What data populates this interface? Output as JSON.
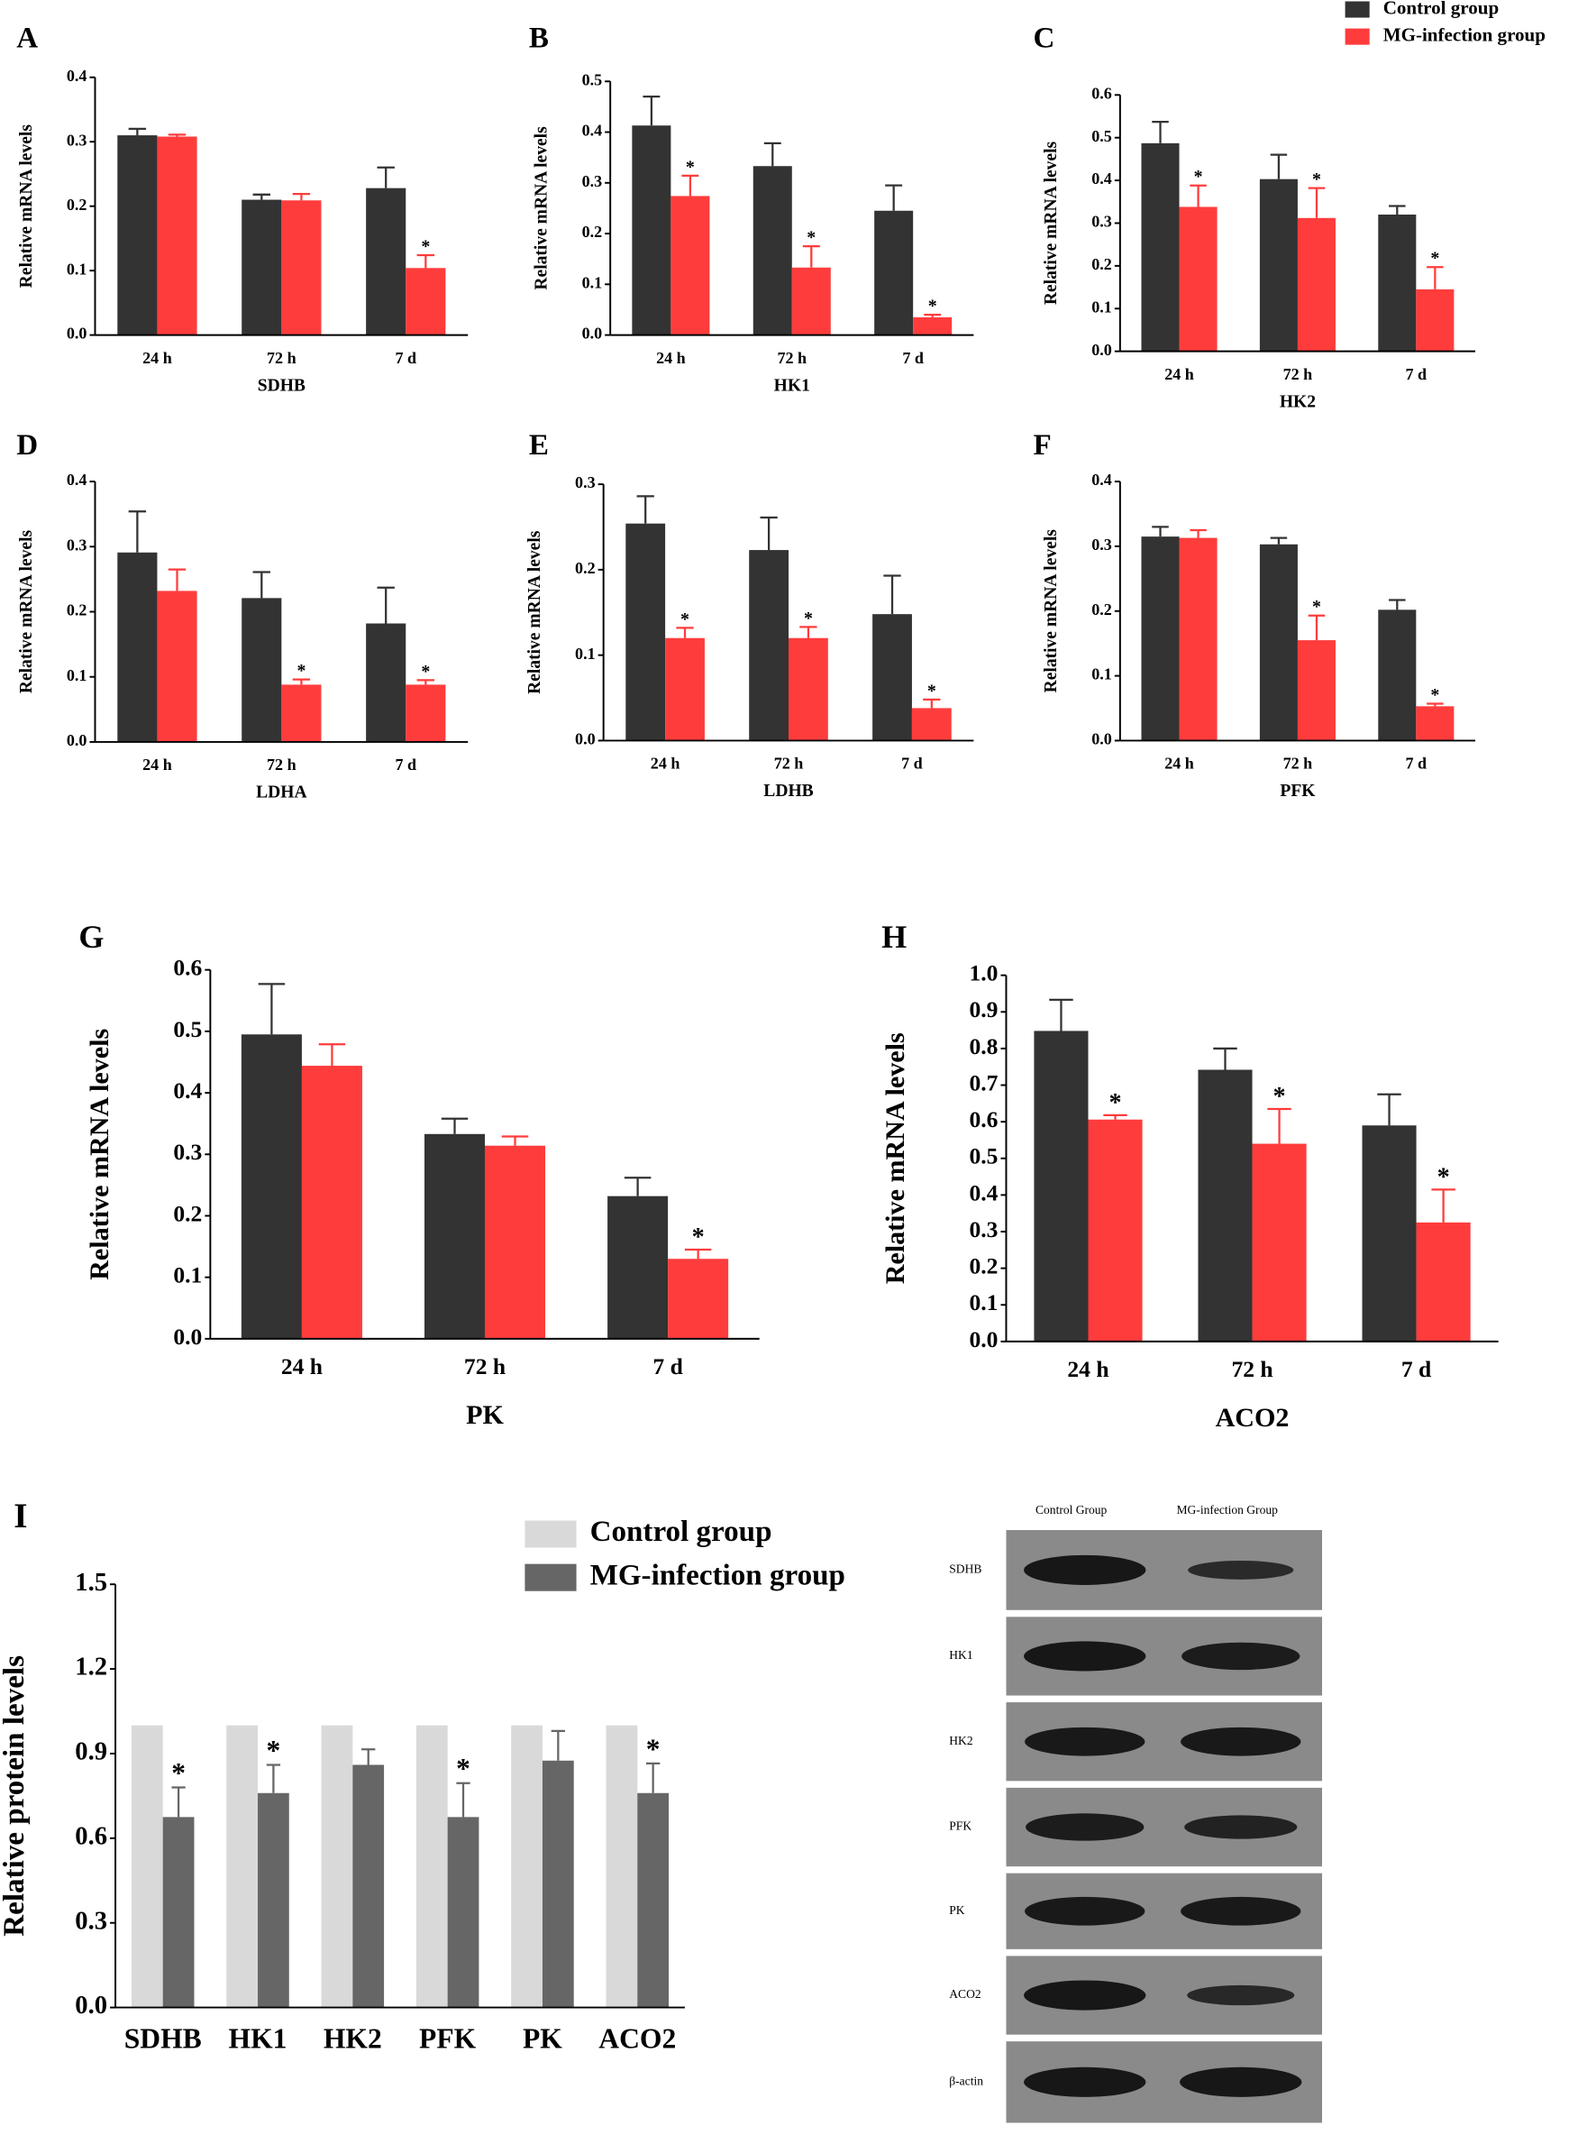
{
  "chart_data": [
    {
      "type": "bar",
      "panel": "A",
      "x_label": "SDHB",
      "y_label": "Relative mRNA levels",
      "categories": [
        "24 h",
        "72 h",
        "7 d"
      ],
      "ylim": [
        0,
        0.4
      ],
      "yticks": [
        {
          "value": 0,
          "label": "0.0"
        },
        0.1,
        0.2,
        0.3,
        0.4
      ],
      "series": [
        {
          "color": "#333333",
          "values": [
            0.31,
            0.21,
            0.228
          ],
          "errors": [
            0.01,
            0.008,
            0.032
          ]
        },
        {
          "color": "#ff3c3c",
          "values": [
            0.308,
            0.209,
            0.104
          ],
          "errors": [
            0.003,
            0.01,
            0.02
          ],
          "annotations": [
            null,
            null,
            "*"
          ]
        }
      ]
    },
    {
      "type": "bar",
      "panel": "B",
      "x_label": "HK1",
      "y_label": "Relative mRNA levels",
      "categories": [
        "24 h",
        "72 h",
        "7 d"
      ],
      "ylim": [
        0,
        0.5
      ],
      "yticks": [
        {
          "value": 0,
          "label": "0.0"
        },
        0.1,
        0.2,
        0.3,
        0.4,
        0.5
      ],
      "series": [
        {
          "color": "#333333",
          "values": [
            0.413,
            0.333,
            0.245
          ],
          "errors": [
            0.057,
            0.045,
            0.05
          ]
        },
        {
          "color": "#ff3c3c",
          "values": [
            0.274,
            0.133,
            0.035
          ],
          "errors": [
            0.04,
            0.042,
            0.005
          ],
          "annotations": [
            "*",
            "*",
            "*"
          ]
        }
      ]
    },
    {
      "type": "bar",
      "panel": "C",
      "x_label": "HK2",
      "y_label": "Relative mRNA levels",
      "categories": [
        "24 h",
        "72 h",
        "7 d"
      ],
      "ylim": [
        0,
        0.6
      ],
      "yticks": [
        {
          "value": 0,
          "label": "0.0"
        },
        0.1,
        0.2,
        0.3,
        0.4,
        0.5,
        0.6
      ],
      "legend": "top-right",
      "series": [
        {
          "name": "Control group",
          "color": "#333333",
          "values": [
            0.487,
            0.403,
            0.32
          ],
          "errors": [
            0.05,
            0.057,
            0.02
          ]
        },
        {
          "name": "MG-infection group",
          "color": "#ff3c3c",
          "values": [
            0.338,
            0.312,
            0.145
          ],
          "errors": [
            0.05,
            0.07,
            0.052
          ],
          "annotations": [
            "*",
            "*",
            "*"
          ]
        }
      ]
    },
    {
      "type": "bar",
      "panel": "D",
      "x_label": "LDHA",
      "y_label": "Relative mRNA levels",
      "categories": [
        "24 h",
        "72 h",
        "7 d"
      ],
      "ylim": [
        0,
        0.4
      ],
      "yticks": [
        {
          "value": 0,
          "label": "0.0"
        },
        0.1,
        0.2,
        0.3,
        0.4
      ],
      "series": [
        {
          "color": "#333333",
          "values": [
            0.291,
            0.221,
            0.182
          ],
          "errors": [
            0.063,
            0.04,
            0.055
          ]
        },
        {
          "color": "#ff3c3c",
          "values": [
            0.232,
            0.088,
            0.088
          ],
          "errors": [
            0.033,
            0.008,
            0.007
          ],
          "annotations": [
            null,
            "*",
            "*"
          ]
        }
      ]
    },
    {
      "type": "bar",
      "panel": "E",
      "x_label": "LDHB",
      "y_label": "Relative mRNA levels",
      "categories": [
        "24 h",
        "72 h",
        "7 d"
      ],
      "ylim": [
        0,
        0.3
      ],
      "yticks": [
        {
          "value": 0,
          "label": "0.0"
        },
        0.1,
        0.2,
        0.3
      ],
      "series": [
        {
          "color": "#333333",
          "values": [
            0.254,
            0.223,
            0.148
          ],
          "errors": [
            0.032,
            0.038,
            0.045
          ]
        },
        {
          "color": "#ff3c3c",
          "values": [
            0.12,
            0.12,
            0.038
          ],
          "errors": [
            0.012,
            0.013,
            0.01
          ],
          "annotations": [
            "*",
            "*",
            "*"
          ]
        }
      ]
    },
    {
      "type": "bar",
      "panel": "F",
      "x_label": "PFK",
      "y_label": "Relative mRNA levels",
      "categories": [
        "24 h",
        "72 h",
        "7 d"
      ],
      "ylim": [
        0,
        0.4
      ],
      "yticks": [
        {
          "value": 0,
          "label": "0.0"
        },
        0.1,
        0.2,
        0.3,
        0.4
      ],
      "series": [
        {
          "color": "#333333",
          "values": [
            0.315,
            0.303,
            0.202
          ],
          "errors": [
            0.015,
            0.01,
            0.015
          ]
        },
        {
          "color": "#ff3c3c",
          "values": [
            0.313,
            0.155,
            0.053
          ],
          "errors": [
            0.012,
            0.038,
            0.004
          ],
          "annotations": [
            null,
            "*",
            "*"
          ]
        }
      ]
    },
    {
      "type": "bar",
      "panel": "G",
      "x_label": "PK",
      "y_label": "Relative mRNA levels",
      "categories": [
        "24 h",
        "72 h",
        "7 d"
      ],
      "ylim": [
        0,
        0.6
      ],
      "yticks": [
        {
          "value": 0,
          "label": "0.0"
        },
        0.1,
        0.2,
        0.3,
        0.4,
        0.5,
        0.6
      ],
      "series": [
        {
          "color": "#333333",
          "values": [
            0.495,
            0.333,
            0.232
          ],
          "errors": [
            0.082,
            0.025,
            0.03
          ]
        },
        {
          "color": "#ff3c3c",
          "values": [
            0.444,
            0.314,
            0.13
          ],
          "errors": [
            0.035,
            0.015,
            0.015
          ],
          "annotations": [
            null,
            null,
            "*"
          ]
        }
      ]
    },
    {
      "type": "bar",
      "panel": "H",
      "x_label": "ACO2",
      "y_label": "Relative mRNA levels",
      "categories": [
        "24 h",
        "72 h",
        "7 d"
      ],
      "ylim": [
        0,
        1.0
      ],
      "yticks": [
        {
          "value": 0,
          "label": "0.0"
        },
        0.1,
        0.2,
        0.3,
        0.4,
        0.5,
        0.6,
        0.7,
        0.8,
        0.9,
        {
          "value": 1,
          "label": "1.0"
        }
      ],
      "series": [
        {
          "color": "#333333",
          "values": [
            0.848,
            0.742,
            0.59
          ],
          "errors": [
            0.085,
            0.058,
            0.085
          ]
        },
        {
          "color": "#ff3c3c",
          "values": [
            0.606,
            0.54,
            0.325
          ],
          "errors": [
            0.012,
            0.095,
            0.09
          ],
          "annotations": [
            "*",
            "*",
            "*"
          ]
        }
      ]
    },
    {
      "type": "bar",
      "panel": "I",
      "y_label": "Relative protein levels",
      "categories": [
        "SDHB",
        "HK1",
        "HK2",
        "PFK",
        "PK",
        "ACO2"
      ],
      "ylim": [
        0,
        1.5
      ],
      "yticks": [
        {
          "value": 0,
          "label": "0.0"
        },
        0.3,
        0.6,
        0.9,
        1.2,
        1.5
      ],
      "legend": "top",
      "series": [
        {
          "name": "Control group",
          "color": "#d9d9d9",
          "values": [
            1,
            1,
            1,
            1,
            1,
            1
          ]
        },
        {
          "name": "MG-infection group",
          "color": "#666666",
          "values": [
            0.675,
            0.76,
            0.86,
            0.675,
            0.875,
            0.76
          ],
          "errors": [
            0.105,
            0.1,
            0.055,
            0.12,
            0.105,
            0.105
          ],
          "annotations": [
            "*",
            "*",
            null,
            "*",
            null,
            "*"
          ]
        }
      ]
    }
  ],
  "blot": {
    "columns": [
      "Control Group",
      "MG-infection Group"
    ],
    "rows": [
      "SDHB",
      "HK1",
      "HK2",
      "PFK",
      "PK",
      "ACO2",
      "β-actin"
    ]
  }
}
